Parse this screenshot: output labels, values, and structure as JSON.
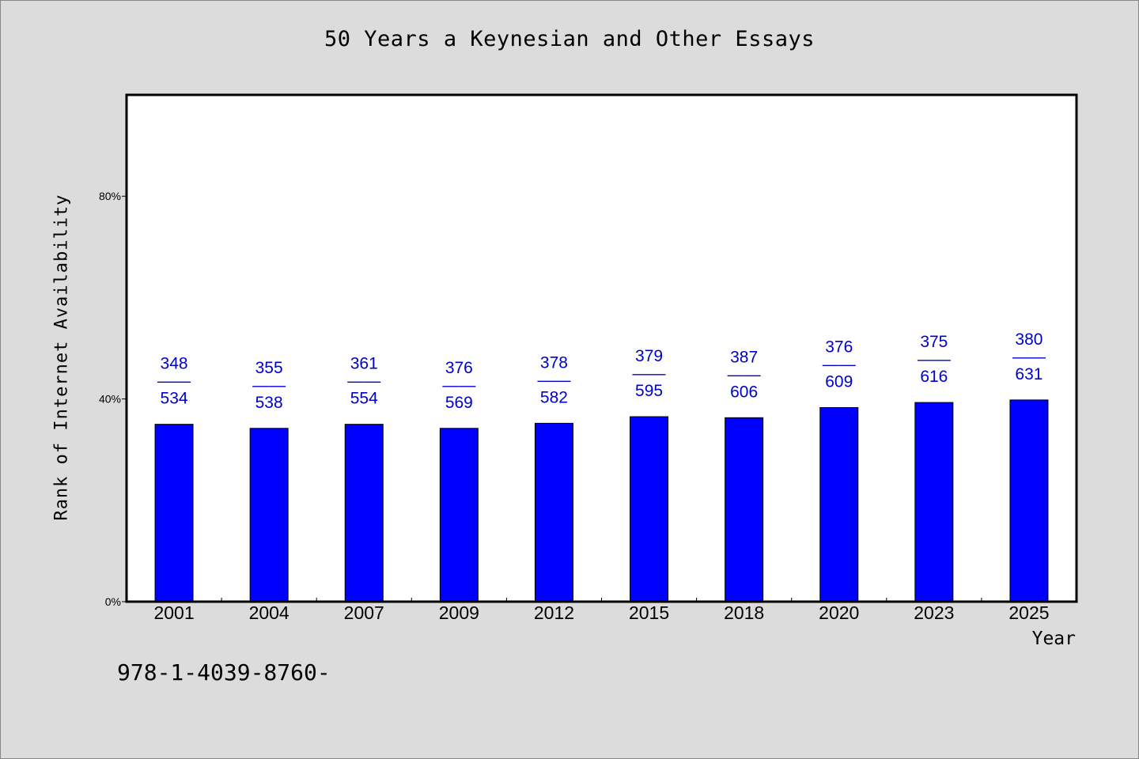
{
  "chart_data": {
    "type": "bar",
    "title": "50 Years a Keynesian and Other Essays",
    "xlabel": "Year",
    "ylabel": "Rank of Internet Availability",
    "ylim": [
      0,
      100
    ],
    "yticks": [
      0,
      40,
      80
    ],
    "ytick_labels": [
      "0%",
      "40%",
      "80%"
    ],
    "categories": [
      "2001",
      "2004",
      "2007",
      "2009",
      "2012",
      "2015",
      "2018",
      "2020",
      "2023",
      "2025"
    ],
    "values": [
      35,
      34.2,
      35,
      34.2,
      35.2,
      36.5,
      36.3,
      38.3,
      39.3,
      39.8
    ],
    "data_labels": [
      {
        "top": "348",
        "sep": "——",
        "bottom": "534"
      },
      {
        "top": "355",
        "sep": "——",
        "bottom": "538"
      },
      {
        "top": "361",
        "sep": "——",
        "bottom": "554"
      },
      {
        "top": "376",
        "sep": "——",
        "bottom": "569"
      },
      {
        "top": "378",
        "sep": "——",
        "bottom": "582"
      },
      {
        "top": "379",
        "sep": "——",
        "bottom": "595"
      },
      {
        "top": "387",
        "sep": "——",
        "bottom": "606"
      },
      {
        "top": "376",
        "sep": "——",
        "bottom": "609"
      },
      {
        "top": "375",
        "sep": "——",
        "bottom": "616"
      },
      {
        "top": "380",
        "sep": "——",
        "bottom": "631"
      }
    ],
    "bar_color": "#0000ff",
    "label_color": "#0000cc",
    "plot_background": "#ffffff",
    "page_background": "#dcdcdc",
    "grid": false,
    "legend": "none"
  },
  "footer": {
    "code": "978-1-4039-8760-"
  }
}
